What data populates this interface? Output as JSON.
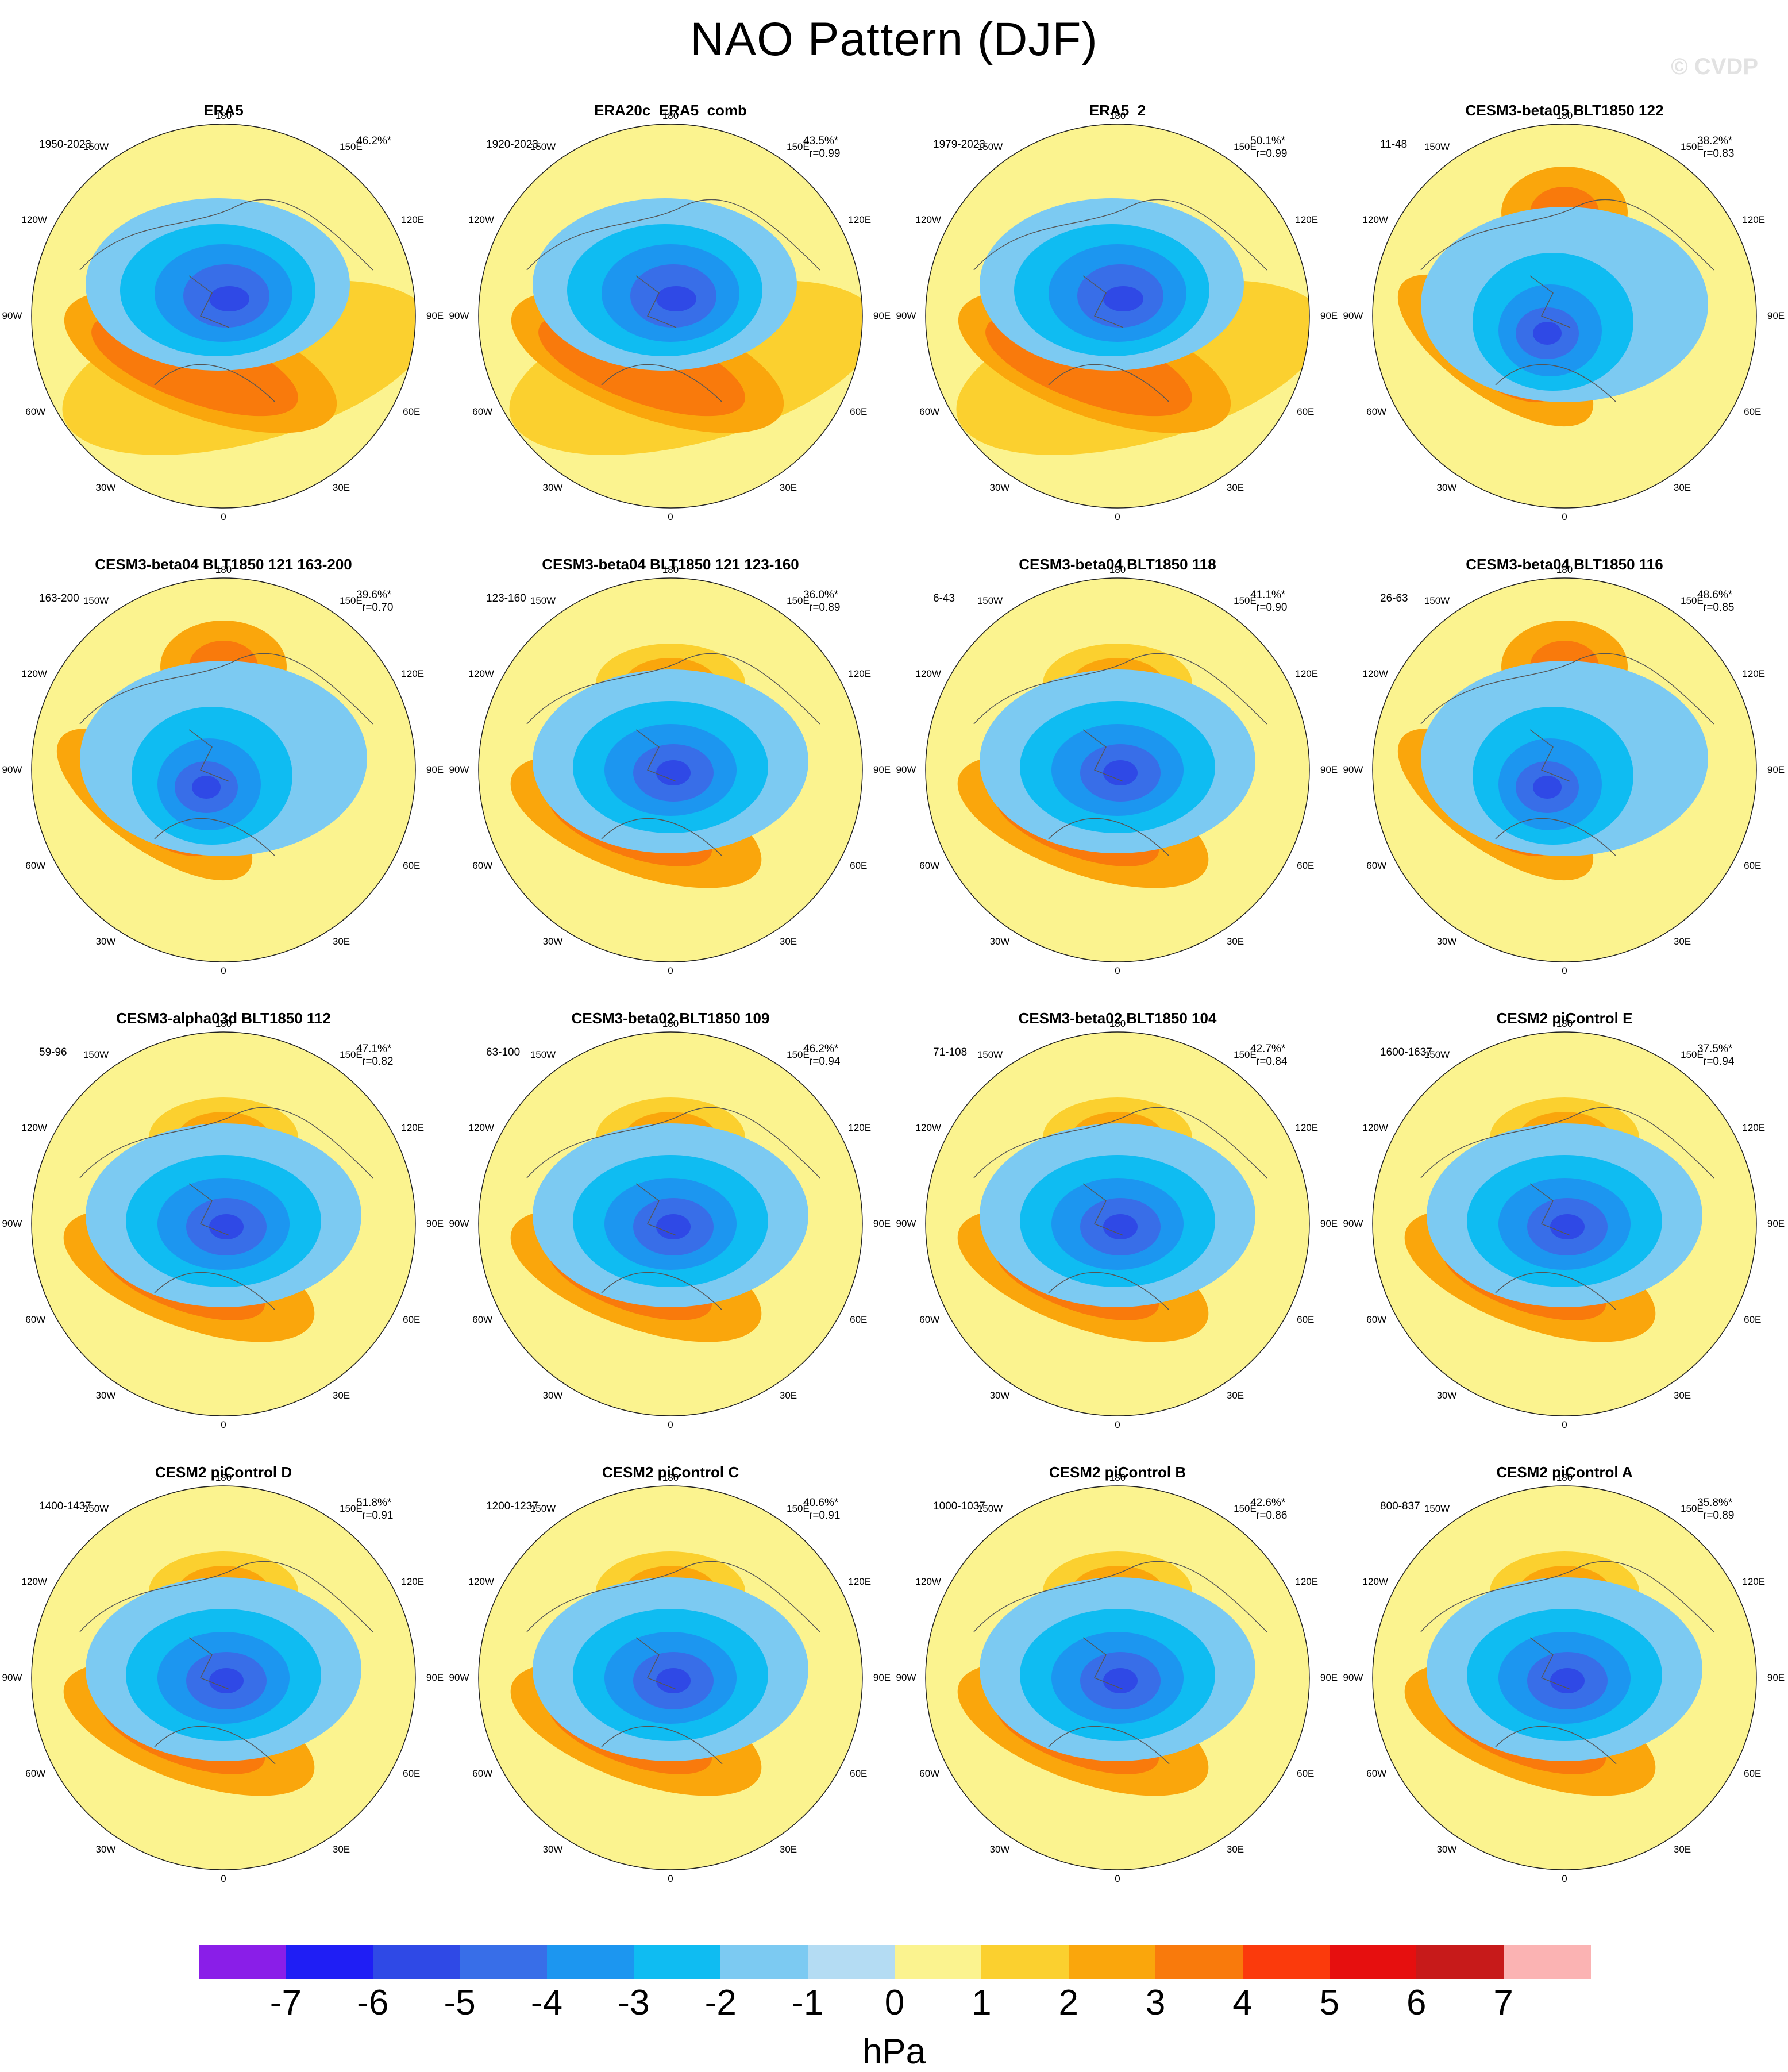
{
  "title": "NAO Pattern (DJF)",
  "watermark": "© CVDP",
  "lon_labels": {
    "n": "180",
    "nw1": "150W",
    "ne1": "150E",
    "nw2": "120W",
    "ne2": "120E",
    "w": "90W",
    "e": "90E",
    "sw2": "60W",
    "se2": "60E",
    "sw1": "30W",
    "se1": "30E",
    "s": "0"
  },
  "panels": [
    {
      "title": "ERA5",
      "period": "1950-2023",
      "pct": "46.2%*",
      "r": ""
    },
    {
      "title": "ERA20c_ERA5_comb",
      "period": "1920-2023",
      "pct": "43.5%*",
      "r": "r=0.99"
    },
    {
      "title": "ERA5_2",
      "period": "1979-2023",
      "pct": "50.1%*",
      "r": "r=0.99"
    },
    {
      "title": "CESM3-beta05 BLT1850 122",
      "period": "11-48",
      "pct": "38.2%*",
      "r": "r=0.83"
    },
    {
      "title": "CESM3-beta04 BLT1850 121 163-200",
      "period": "163-200",
      "pct": "39.6%*",
      "r": "r=0.70"
    },
    {
      "title": "CESM3-beta04 BLT1850 121 123-160",
      "period": "123-160",
      "pct": "36.0%*",
      "r": "r=0.89"
    },
    {
      "title": "CESM3-beta04 BLT1850 118",
      "period": "6-43",
      "pct": "41.1%*",
      "r": "r=0.90"
    },
    {
      "title": "CESM3-beta04 BLT1850 116",
      "period": "26-63",
      "pct": "48.6%*",
      "r": "r=0.85"
    },
    {
      "title": "CESM3-alpha03d BLT1850 112",
      "period": "59-96",
      "pct": "47.1%*",
      "r": "r=0.82"
    },
    {
      "title": "CESM3-beta02 BLT1850 109",
      "period": "63-100",
      "pct": "46.2%*",
      "r": "r=0.94"
    },
    {
      "title": "CESM3-beta02 BLT1850 104",
      "period": "71-108",
      "pct": "42.7%*",
      "r": "r=0.84"
    },
    {
      "title": "CESM2 piControl E",
      "period": "1600-1637",
      "pct": "37.5%*",
      "r": "r=0.94"
    },
    {
      "title": "CESM2 piControl D",
      "period": "1400-1437",
      "pct": "51.8%*",
      "r": "r=0.91"
    },
    {
      "title": "CESM2 piControl C",
      "period": "1200-1237",
      "pct": "40.6%*",
      "r": "r=0.91"
    },
    {
      "title": "CESM2 piControl B",
      "period": "1000-1037",
      "pct": "42.6%*",
      "r": "r=0.86"
    },
    {
      "title": "CESM2 piControl A",
      "period": "800-837",
      "pct": "35.8%*",
      "r": "r=0.89"
    }
  ],
  "colorbar": {
    "unit": "hPa",
    "ticks": [
      "-7",
      "-6",
      "-5",
      "-4",
      "-3",
      "-2",
      "-1",
      "0",
      "1",
      "2",
      "3",
      "4",
      "5",
      "6",
      "7"
    ],
    "colors": [
      "#8a1ee8",
      "#1f1ef5",
      "#2f49e6",
      "#386ee8",
      "#1c96f0",
      "#0fbcf2",
      "#7ccaf2",
      "#b4dcf3",
      "#fbf38f",
      "#fbd02f",
      "#faa60c",
      "#f97a0c",
      "#fb3a0c",
      "#e60f0f",
      "#c71a1a",
      "#fbb3b3"
    ]
  }
}
